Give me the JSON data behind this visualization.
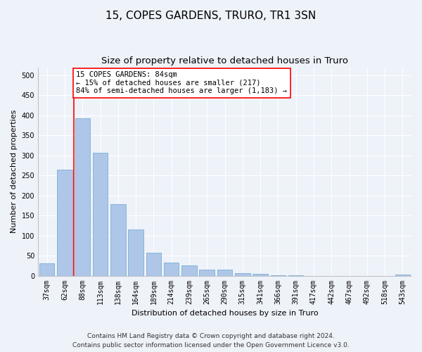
{
  "title": "15, COPES GARDENS, TRURO, TR1 3SN",
  "subtitle": "Size of property relative to detached houses in Truro",
  "xlabel": "Distribution of detached houses by size in Truro",
  "ylabel": "Number of detached properties",
  "bar_labels": [
    "37sqm",
    "62sqm",
    "88sqm",
    "113sqm",
    "138sqm",
    "164sqm",
    "189sqm",
    "214sqm",
    "239sqm",
    "265sqm",
    "290sqm",
    "315sqm",
    "341sqm",
    "366sqm",
    "391sqm",
    "417sqm",
    "442sqm",
    "467sqm",
    "492sqm",
    "518sqm",
    "543sqm"
  ],
  "bar_values": [
    30,
    265,
    393,
    307,
    178,
    115,
    58,
    32,
    25,
    15,
    15,
    7,
    4,
    1,
    1,
    0,
    0,
    0,
    0,
    0,
    2
  ],
  "bar_color": "#aec6e8",
  "bar_edge_color": "#7aafd4",
  "vline_x_index": 2,
  "vline_color": "red",
  "annotation_text": "15 COPES GARDENS: 84sqm\n← 15% of detached houses are smaller (217)\n84% of semi-detached houses are larger (1,183) →",
  "annotation_box_color": "white",
  "annotation_box_edge_color": "red",
  "ylim": [
    0,
    520
  ],
  "yticks": [
    0,
    50,
    100,
    150,
    200,
    250,
    300,
    350,
    400,
    450,
    500
  ],
  "footer_line1": "Contains HM Land Registry data © Crown copyright and database right 2024.",
  "footer_line2": "Contains public sector information licensed under the Open Government Licence v3.0.",
  "bg_color": "#eef2f9",
  "plot_bg_color": "#eef2f9",
  "grid_color": "white",
  "title_fontsize": 11,
  "subtitle_fontsize": 9.5,
  "axis_label_fontsize": 8,
  "tick_fontsize": 7,
  "annotation_fontsize": 7.5,
  "footer_fontsize": 6.5
}
